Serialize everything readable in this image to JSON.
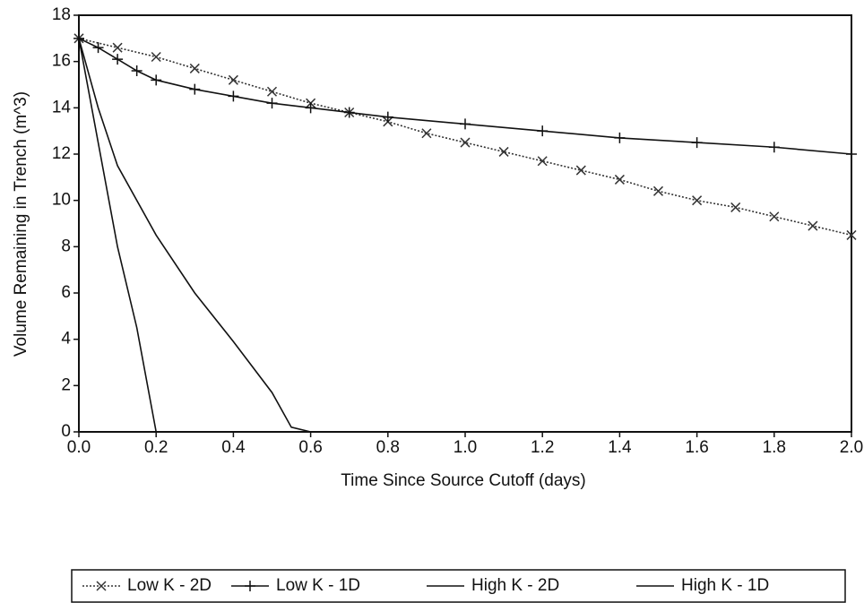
{
  "chart_data": {
    "type": "line",
    "xlabel": "Time Since Source Cutoff (days)",
    "ylabel": "Volume Remaining in Trench (m^3)",
    "xlim": [
      0,
      2
    ],
    "ylim": [
      0,
      18
    ],
    "xticks": [
      {
        "value": 0,
        "label": "0.0"
      },
      0.2,
      0.4,
      0.6,
      0.8,
      {
        "value": 1,
        "label": "1.0"
      },
      1.2,
      1.4,
      1.6,
      1.8,
      {
        "value": 2,
        "label": "2.0"
      }
    ],
    "yticks": [
      0,
      2,
      4,
      6,
      8,
      10,
      12,
      14,
      16,
      18
    ],
    "grid": false,
    "legend": "bottom",
    "series": [
      {
        "name": "Low K - 2D",
        "color": "#333333",
        "marker": "x",
        "style": "dotted",
        "x": [
          0,
          0.1,
          0.2,
          0.3,
          0.4,
          0.5,
          0.6,
          0.7,
          0.8,
          0.9,
          1.0,
          1.1,
          1.2,
          1.3,
          1.4,
          1.5,
          1.6,
          1.7,
          1.8,
          1.9,
          2.0
        ],
        "values": [
          17.0,
          16.6,
          16.2,
          15.7,
          15.2,
          14.7,
          14.2,
          13.8,
          13.4,
          12.9,
          12.5,
          12.1,
          11.7,
          11.3,
          10.9,
          10.4,
          10.0,
          9.7,
          9.3,
          8.9,
          8.5
        ]
      },
      {
        "name": "Low K - 1D",
        "color": "#111111",
        "marker": "+",
        "style": "solid",
        "x": [
          0,
          0.05,
          0.1,
          0.15,
          0.2,
          0.3,
          0.4,
          0.5,
          0.6,
          0.7,
          0.8,
          1.0,
          1.2,
          1.4,
          1.6,
          1.8,
          2.0
        ],
        "values": [
          17.0,
          16.6,
          16.1,
          15.6,
          15.2,
          14.8,
          14.5,
          14.2,
          14.0,
          13.8,
          13.6,
          13.3,
          13.0,
          12.7,
          12.5,
          12.3,
          12.0
        ]
      },
      {
        "name": "High K - 2D",
        "color": "#111111",
        "marker": "none",
        "style": "solid",
        "x": [
          0,
          0.05,
          0.1,
          0.2,
          0.3,
          0.4,
          0.5,
          0.55,
          0.6
        ],
        "values": [
          17.0,
          14.0,
          11.5,
          8.5,
          6.0,
          3.9,
          1.7,
          0.2,
          0
        ]
      },
      {
        "name": "High K - 1D",
        "color": "#111111",
        "marker": "none",
        "style": "solid",
        "x": [
          0,
          0.05,
          0.1,
          0.15,
          0.2
        ],
        "values": [
          17.0,
          12.5,
          8.0,
          4.5,
          0
        ]
      }
    ]
  }
}
